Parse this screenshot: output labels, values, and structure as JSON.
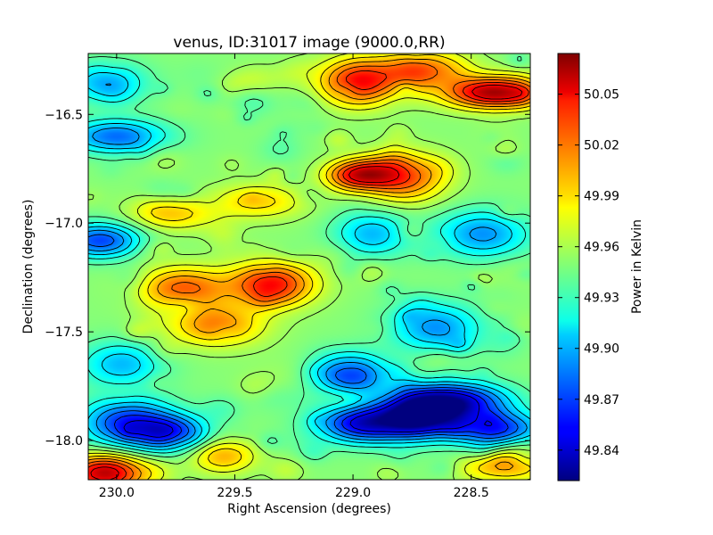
{
  "chart_data": {
    "type": "heatmap",
    "title": "venus, ID:31017 image (9000.0,RR)",
    "xlabel": "Right Ascension (degrees)",
    "ylabel": "Declination (degrees)",
    "colorbar_label": "Power in Kelvin",
    "xlim": [
      230.12,
      228.25
    ],
    "ylim": [
      -18.18,
      -16.22
    ],
    "x_ticks": [
      230.0,
      229.5,
      229.0,
      228.5
    ],
    "x_tick_labels": [
      "230.0",
      "229.5",
      "229.0",
      "228.5"
    ],
    "y_ticks": [
      -16.5,
      -17.0,
      -17.5,
      -18.0
    ],
    "y_tick_labels": [
      "−16.5",
      "−17.0",
      "−17.5",
      "−18.0"
    ],
    "colorbar_ticks": [
      50.05,
      50.02,
      49.99,
      49.96,
      49.93,
      49.9,
      49.87,
      49.84
    ],
    "colorbar_tick_labels": [
      "50.05",
      "50.02",
      "49.99",
      "49.96",
      "49.93",
      "49.90",
      "49.87",
      "49.84"
    ],
    "value_range": [
      49.822,
      50.074
    ],
    "colormap": "jet",
    "contours": true,
    "features": [
      {
        "ra": 229.34,
        "dec": -17.28,
        "value": 50.04
      },
      {
        "ra": 229.72,
        "dec": -17.3,
        "value": 50.02
      },
      {
        "ra": 229.58,
        "dec": -17.47,
        "value": 50.01
      },
      {
        "ra": 228.96,
        "dec": -16.78,
        "value": 50.05
      },
      {
        "ra": 228.78,
        "dec": -16.79,
        "value": 50.02
      },
      {
        "ra": 228.4,
        "dec": -16.4,
        "value": 50.06
      },
      {
        "ra": 228.98,
        "dec": -16.35,
        "value": 50.04
      },
      {
        "ra": 228.7,
        "dec": -16.3,
        "value": 50.03
      },
      {
        "ra": 229.4,
        "dec": -16.9,
        "value": 49.99
      },
      {
        "ra": 229.76,
        "dec": -16.96,
        "value": 49.99
      },
      {
        "ra": 228.72,
        "dec": -17.88,
        "value": 49.83
      },
      {
        "ra": 228.95,
        "dec": -17.92,
        "value": 49.84
      },
      {
        "ra": 228.55,
        "dec": -17.82,
        "value": 49.85
      },
      {
        "ra": 229.02,
        "dec": -17.7,
        "value": 49.86
      },
      {
        "ra": 228.4,
        "dec": -17.95,
        "value": 49.86
      },
      {
        "ra": 229.95,
        "dec": -17.92,
        "value": 49.86
      },
      {
        "ra": 229.76,
        "dec": -17.97,
        "value": 49.87
      },
      {
        "ra": 230.07,
        "dec": -17.08,
        "value": 49.87
      },
      {
        "ra": 230.0,
        "dec": -16.6,
        "value": 49.88
      },
      {
        "ra": 228.45,
        "dec": -17.05,
        "value": 49.89
      },
      {
        "ra": 228.92,
        "dec": -17.05,
        "value": 49.9
      },
      {
        "ra": 228.65,
        "dec": -17.48,
        "value": 49.89
      },
      {
        "ra": 229.98,
        "dec": -17.65,
        "value": 49.9
      },
      {
        "ra": 230.05,
        "dec": -16.35,
        "value": 49.9
      },
      {
        "ra": 229.55,
        "dec": -18.07,
        "value": 50.0
      },
      {
        "ra": 230.05,
        "dec": -18.15,
        "value": 50.06
      },
      {
        "ra": 228.35,
        "dec": -18.12,
        "value": 50.0
      },
      {
        "ra": 229.6,
        "dec": -16.45,
        "value": 49.95
      },
      {
        "ra": 229.2,
        "dec": -17.7,
        "value": 49.96
      }
    ]
  }
}
